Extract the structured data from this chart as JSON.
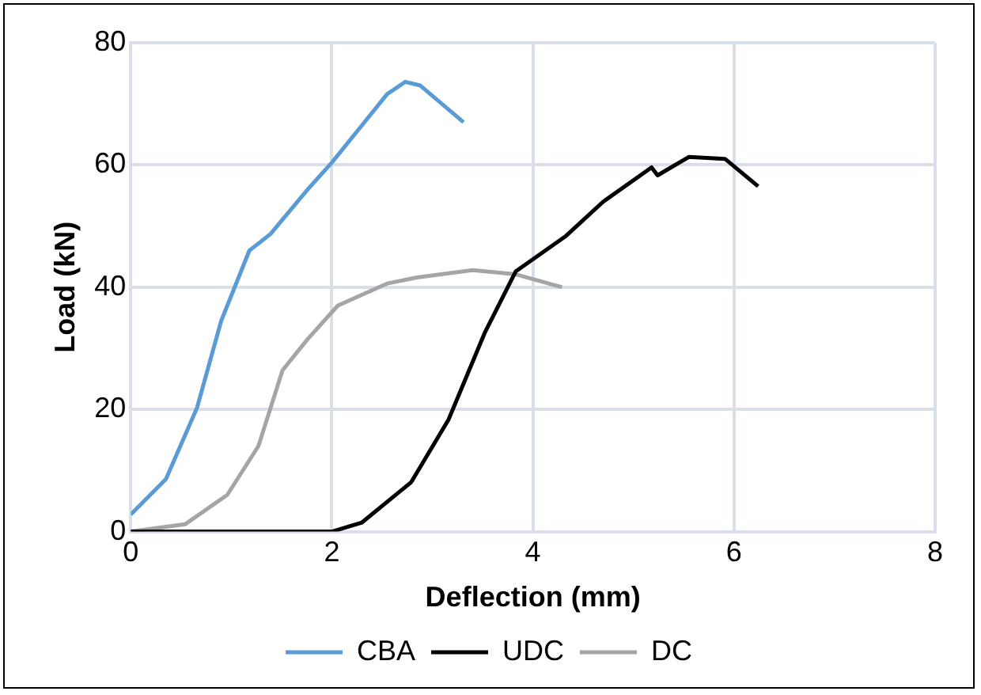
{
  "chart_data": {
    "type": "line",
    "xlabel": "Deflection (mm)",
    "ylabel": "Load (kN)",
    "xlim": [
      0,
      8
    ],
    "xticks": [
      0,
      2,
      4,
      6,
      8
    ],
    "ylim": [
      0,
      80
    ],
    "yticks": [
      0,
      20,
      40,
      60,
      80
    ],
    "grid": true,
    "legend": "bottom",
    "marker": "none",
    "line_style": "solid",
    "series": [
      {
        "name": "CBA",
        "color": "#5b9bd5",
        "x": [
          0,
          0.35,
          0.66,
          0.9,
          1.18,
          1.39,
          1.76,
          2.0,
          2.3,
          2.55,
          2.73,
          2.88,
          3.31
        ],
        "values": [
          2.8,
          8.6,
          20.3,
          34.5,
          46,
          48.7,
          56,
          60.4,
          66.5,
          71.6,
          73.6,
          73,
          67
        ]
      },
      {
        "name": "UDC",
        "color": "#000000",
        "x": [
          0,
          1,
          2,
          2.3,
          2.79,
          3.16,
          3.52,
          3.83,
          4.33,
          4.7,
          5.18,
          5.24,
          5.55,
          5.91,
          6.24
        ],
        "values": [
          0,
          0,
          0,
          1.5,
          8.1,
          18.3,
          32.5,
          42.6,
          48.4,
          54,
          59.6,
          58.3,
          61.3,
          61,
          56.5
        ]
      },
      {
        "name": "DC",
        "color": "#a5a5a5",
        "x": [
          0,
          0.54,
          0.96,
          1.27,
          1.51,
          1.76,
          2.06,
          2.55,
          2.85,
          3.4,
          3.83,
          4.29
        ],
        "values": [
          0,
          1.2,
          6,
          14,
          26.4,
          31.5,
          37,
          40.6,
          41.6,
          42.8,
          42.1,
          40
        ]
      }
    ]
  }
}
